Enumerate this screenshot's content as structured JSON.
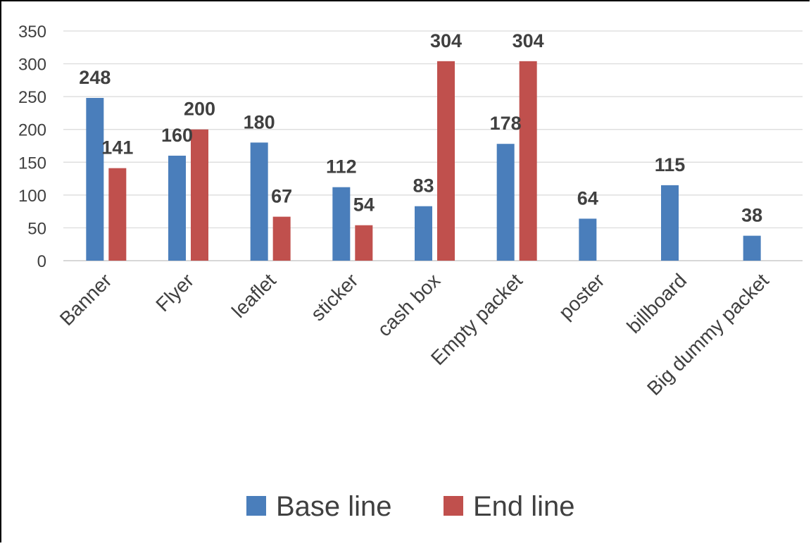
{
  "chart_data": {
    "type": "bar",
    "categories": [
      "Banner",
      "Flyer",
      "leaflet",
      "sticker",
      "cash box",
      "Empty packet",
      "poster",
      "billboard",
      "Big dummy packet"
    ],
    "series": [
      {
        "name": "Base line",
        "color": "#4A7EBB",
        "values": [
          248,
          160,
          180,
          112,
          83,
          178,
          64,
          115,
          38
        ]
      },
      {
        "name": "End line",
        "color": "#C0504D",
        "values": [
          141,
          200,
          67,
          54,
          304,
          304,
          null,
          null,
          null
        ]
      }
    ],
    "yticks": [
      "0",
      "50",
      "100",
      "150",
      "200",
      "250",
      "300",
      "350"
    ],
    "ylim": [
      0,
      350
    ],
    "grid": true,
    "legend": "bottom"
  }
}
